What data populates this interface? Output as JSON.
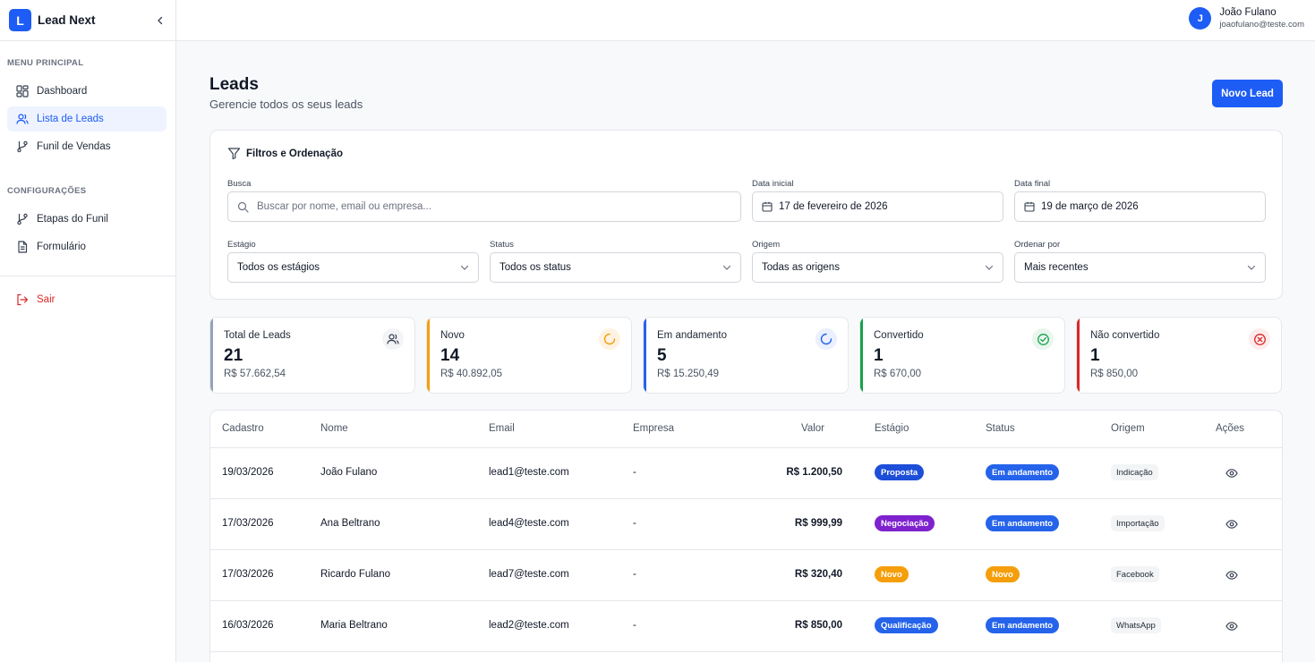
{
  "brand": {
    "logo_letter": "L",
    "name": "Lead Next"
  },
  "sidebar": {
    "section_main": "MENU PRINCIPAL",
    "main_items": [
      {
        "label": "Dashboard",
        "icon": "dashboard-icon"
      },
      {
        "label": "Lista de Leads",
        "icon": "users-icon",
        "active": true
      },
      {
        "label": "Funil de Vendas",
        "icon": "git-branch-icon"
      }
    ],
    "section_config": "CONFIGURAÇÕES",
    "config_items": [
      {
        "label": "Etapas do Funil",
        "icon": "git-branch-icon"
      },
      {
        "label": "Formulário",
        "icon": "document-icon"
      }
    ],
    "logout_label": "Sair"
  },
  "user": {
    "initial": "J",
    "name": "João Fulano",
    "email": "joaofulano@teste.com"
  },
  "page": {
    "title": "Leads",
    "subtitle": "Gerencie todos os seus leads",
    "new_button": "Novo Lead"
  },
  "filters": {
    "title": "Filtros e Ordenação",
    "search": {
      "label": "Busca",
      "placeholder": "Buscar por nome, email ou empresa...",
      "value": ""
    },
    "start_date": {
      "label": "Data inicial",
      "value": "17 de fevereiro de 2026"
    },
    "end_date": {
      "label": "Data final",
      "value": "19 de março de 2026"
    },
    "stage": {
      "label": "Estágio",
      "value": "Todos os estágios"
    },
    "status": {
      "label": "Status",
      "value": "Todos os status"
    },
    "origin": {
      "label": "Origem",
      "value": "Todas as origens"
    },
    "sort": {
      "label": "Ordenar por",
      "value": "Mais recentes"
    }
  },
  "cards": [
    {
      "label": "Total de Leads",
      "value": "21",
      "amount": "R$ 57.662,54",
      "color": "#94a3b8",
      "icon": "users-icon"
    },
    {
      "label": "Novo",
      "value": "14",
      "amount": "R$ 40.892,05",
      "color": "#f59e0b",
      "icon": "loader-icon"
    },
    {
      "label": "Em andamento",
      "value": "5",
      "amount": "R$ 15.250,49",
      "color": "#2563eb",
      "icon": "loader-icon"
    },
    {
      "label": "Convertido",
      "value": "1",
      "amount": "R$ 670,00",
      "color": "#16a34a",
      "icon": "check-circle-icon"
    },
    {
      "label": "Não convertido",
      "value": "1",
      "amount": "R$ 850,00",
      "color": "#dc2626",
      "icon": "x-circle-icon"
    }
  ],
  "table": {
    "headers": {
      "date": "Cadastro",
      "name": "Nome",
      "email": "Email",
      "company": "Empresa",
      "value": "Valor",
      "stage": "Estágio",
      "status": "Status",
      "origin": "Origem",
      "actions": "Ações"
    },
    "rows": [
      {
        "date": "19/03/2026",
        "name": "João Fulano",
        "email": "lead1@teste.com",
        "company": "-",
        "value": "R$ 1.200,50",
        "stage": "Proposta",
        "stage_color": "#1d4ed8",
        "status": "Em andamento",
        "status_color": "#2563eb",
        "origin": "Indicação"
      },
      {
        "date": "17/03/2026",
        "name": "Ana Beltrano",
        "email": "lead4@teste.com",
        "company": "-",
        "value": "R$ 999,99",
        "stage": "Negociação",
        "stage_color": "#7e22ce",
        "status": "Em andamento",
        "status_color": "#2563eb",
        "origin": "Importação"
      },
      {
        "date": "17/03/2026",
        "name": "Ricardo Fulano",
        "email": "lead7@teste.com",
        "company": "-",
        "value": "R$ 320,40",
        "stage": "Novo",
        "stage_color": "#f59e0b",
        "status": "Novo",
        "status_color": "#f59e0b",
        "origin": "Facebook"
      },
      {
        "date": "16/03/2026",
        "name": "Maria Beltrano",
        "email": "lead2@teste.com",
        "company": "-",
        "value": "R$ 850,00",
        "stage": "Qualificação",
        "stage_color": "#2563eb",
        "status": "Em andamento",
        "status_color": "#2563eb",
        "origin": "WhatsApp"
      }
    ]
  }
}
